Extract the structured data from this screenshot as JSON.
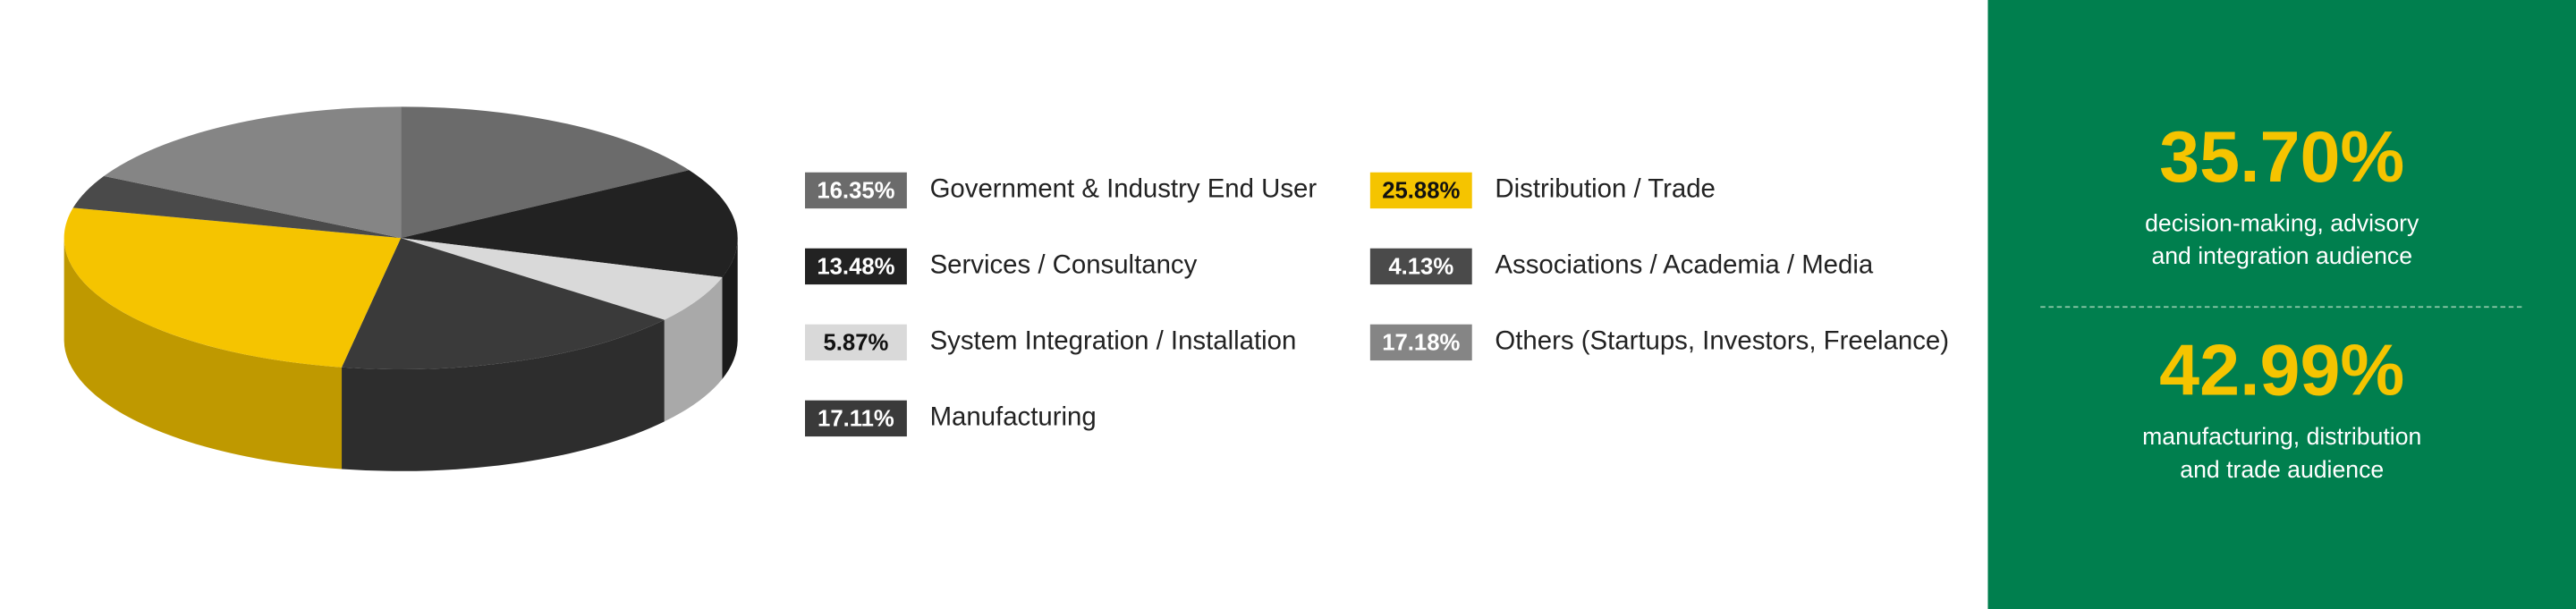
{
  "chart_data": {
    "type": "pie",
    "categories": [
      "Government & Industry End User",
      "Services / Consultancy",
      "System Integration / Installation",
      "Manufacturing",
      "Distribution / Trade",
      "Associations / Academia / Media",
      "Others (Startups, Investors, Freelance)"
    ],
    "values": [
      16.35,
      13.48,
      5.87,
      17.11,
      25.88,
      4.13,
      17.18
    ],
    "value_labels": [
      "16.35%",
      "13.48%",
      "5.87%",
      "17.11%",
      "25.88%",
      "4.13%",
      "17.18%"
    ],
    "colors": [
      "#6b6b6b",
      "#222222",
      "#d9d9d9",
      "#3a3a3a",
      "#f5c400",
      "#4a4a4a",
      "#858585"
    ]
  },
  "highlights": [
    {
      "value": "35.70%",
      "lines": [
        "decision-making, advisory",
        "and integration audience"
      ]
    },
    {
      "value": "42.99%",
      "lines": [
        "manufacturing, distribution",
        "and trade audience"
      ]
    }
  ]
}
